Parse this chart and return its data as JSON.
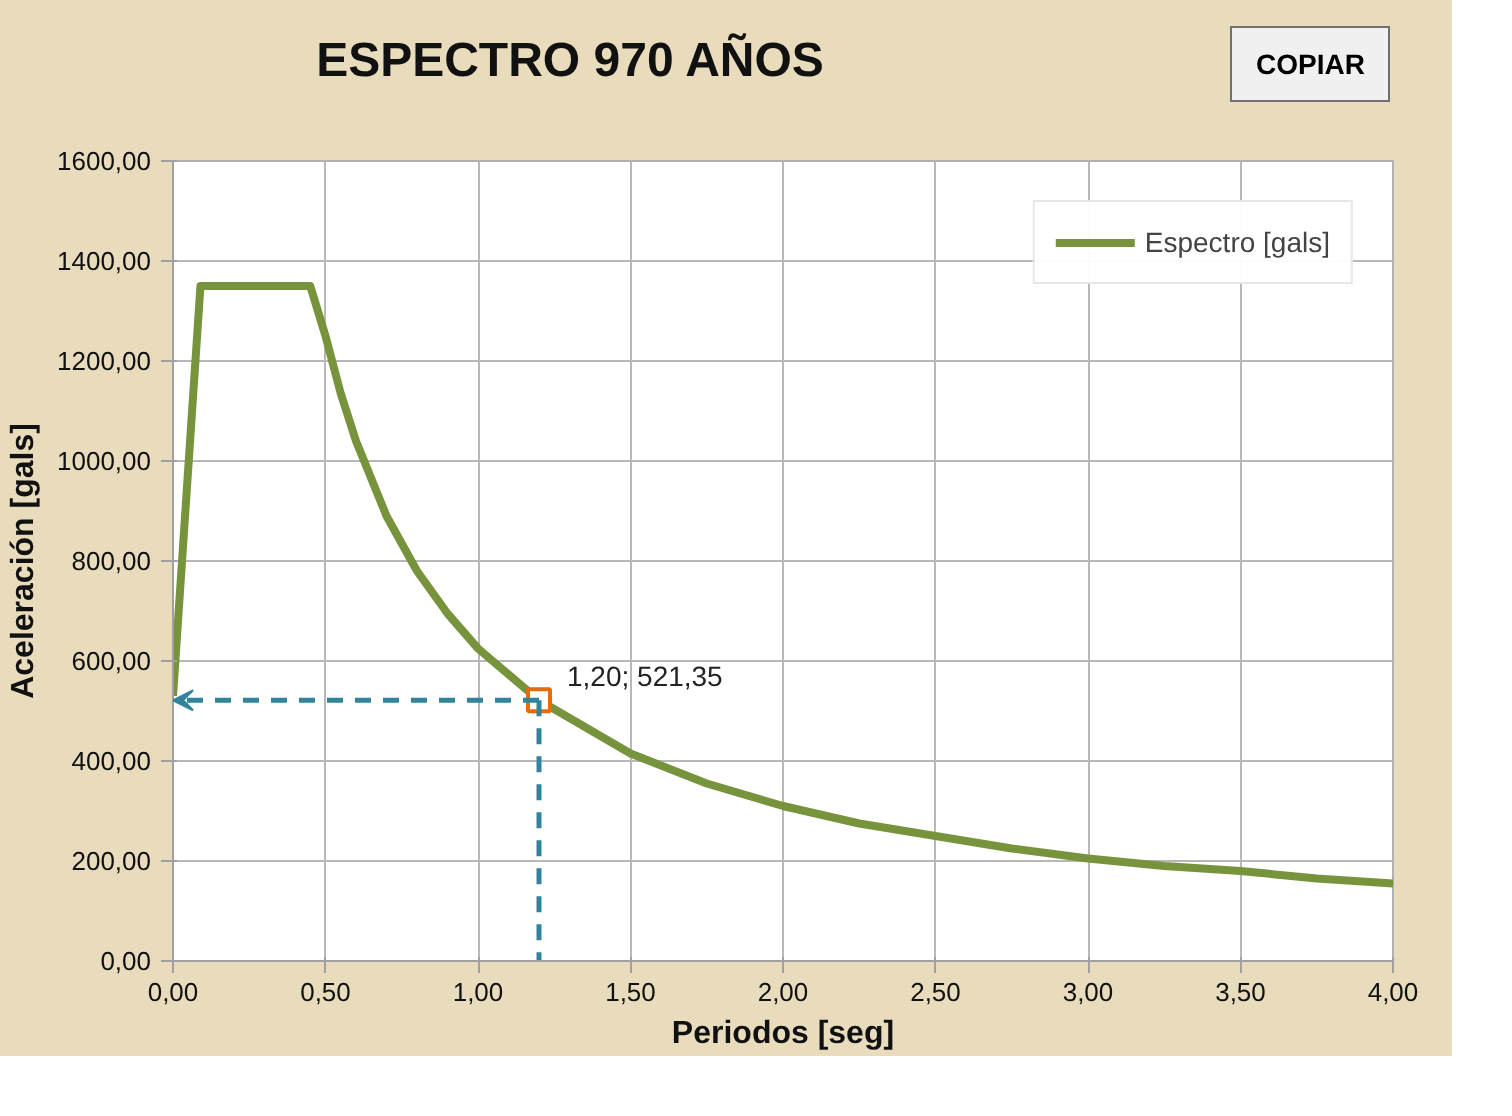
{
  "chart_data": {
    "type": "line",
    "title": "ESPECTRO 970 AÑOS",
    "xlabel": "Periodos [seg]",
    "ylabel": "Aceleración [gals]",
    "series": [
      {
        "name": "Espectro [gals]",
        "color": "#77933c",
        "x": [
          0,
          0.09,
          0.45,
          0.5,
          0.55,
          0.6,
          0.7,
          0.8,
          0.9,
          1.0,
          1.2,
          1.5,
          1.75,
          2.0,
          2.25,
          2.5,
          2.75,
          3.0,
          3.25,
          3.5,
          3.75,
          4.0
        ],
        "values": [
          530,
          1350,
          1350,
          1250,
          1135,
          1040,
          890,
          780,
          695,
          625,
          521.35,
          415,
          355,
          310,
          275,
          250,
          225,
          205,
          190,
          180,
          165,
          155
        ]
      },
      {
        "type": "scatter",
        "marker": "square",
        "color": "#e46c0a",
        "x": [
          1.2
        ],
        "values": [
          521.35
        ]
      }
    ],
    "xlim": [
      0,
      4
    ],
    "ylim": [
      0,
      1600
    ],
    "xticks": [
      {
        "value": 0,
        "label": "0,00"
      },
      {
        "value": 0.5,
        "label": "0,50"
      },
      {
        "value": 1,
        "label": "1,00"
      },
      {
        "value": 1.5,
        "label": "1,50"
      },
      {
        "value": 2,
        "label": "2,00"
      },
      {
        "value": 2.5,
        "label": "2,50"
      },
      {
        "value": 3,
        "label": "3,00"
      },
      {
        "value": 3.5,
        "label": "3,50"
      },
      {
        "value": 4,
        "label": "4,00"
      }
    ],
    "yticks": [
      {
        "value": 0,
        "label": "0,00"
      },
      {
        "value": 200,
        "label": "200,00"
      },
      {
        "value": 400,
        "label": "400,00"
      },
      {
        "value": 600,
        "label": "600,00"
      },
      {
        "value": 800,
        "label": "800,00"
      },
      {
        "value": 1000,
        "label": "1000,00"
      },
      {
        "value": 1200,
        "label": "1200,00"
      },
      {
        "value": 1400,
        "label": "1400,00"
      },
      {
        "value": 1600,
        "label": "1600,00"
      }
    ],
    "annotations": [
      {
        "text": "1,20; 521,35",
        "x": 1.2,
        "y": 521.35
      },
      "COPIAR"
    ],
    "grid": true,
    "legend": "top right",
    "marker": "none",
    "line_style": "solid"
  }
}
